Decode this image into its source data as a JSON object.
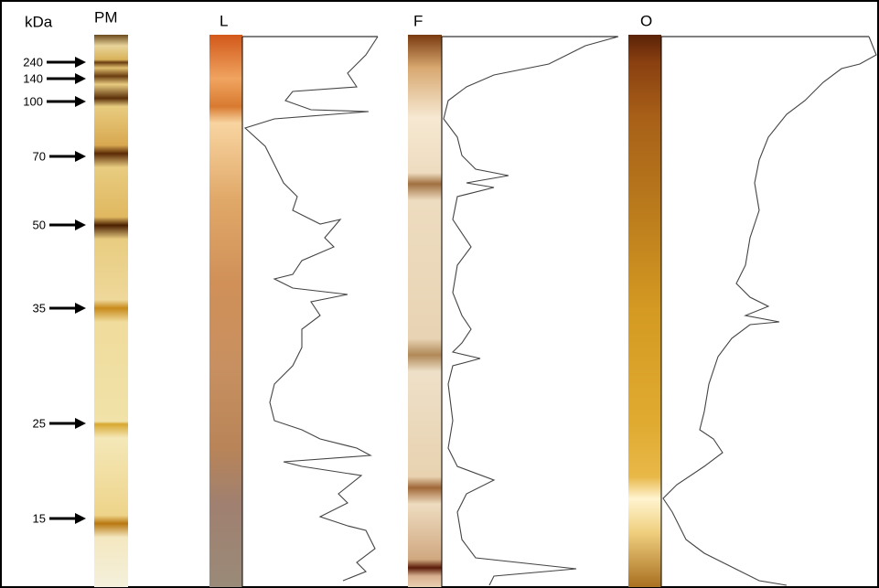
{
  "header": {
    "unit": "kDa",
    "marker_lane": "PM"
  },
  "markers": [
    "240",
    "140",
    "100",
    "70",
    "50",
    "35",
    "25",
    "15"
  ],
  "lanes": [
    "L",
    "F",
    "O"
  ]
}
